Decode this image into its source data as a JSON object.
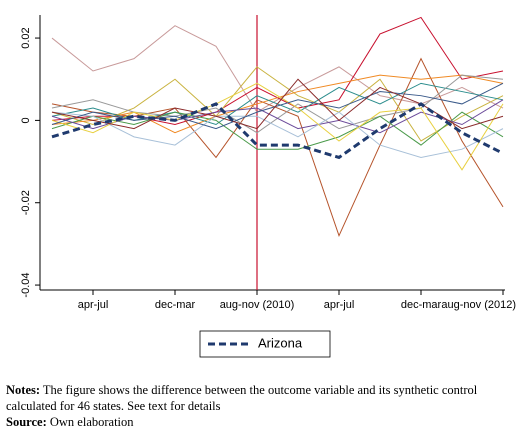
{
  "chart_data": {
    "type": "line",
    "categories": [
      null,
      "apr-jul",
      null,
      "dec-mar",
      null,
      "aug-nov (2010)",
      null,
      "apr-jul",
      null,
      "dec-mar",
      null,
      "aug-nov (2012)"
    ],
    "ylim": [
      -0.0412,
      0.0256
    ],
    "yticks": [
      -0.04,
      -0.02,
      0,
      0.02
    ],
    "vline": 5,
    "vline_color": "#c8102e",
    "series": [
      {
        "color": "#c89a9a",
        "values": [
          0.02,
          0.012,
          0.015,
          0.023,
          0.018,
          0.002,
          0.008,
          0.013,
          0.006,
          0.004,
          0.008,
          0.003
        ]
      },
      {
        "color": "#c8102e",
        "values": [
          0.0,
          0.001,
          0.001,
          -0.001,
          0.002,
          0.008,
          0.003,
          0.005,
          0.021,
          0.025,
          0.01,
          0.012
        ]
      },
      {
        "color": "#b5532a",
        "values": [
          0.004,
          0.002,
          0.001,
          0.003,
          -0.009,
          0.005,
          0.001,
          -0.028,
          -0.006,
          0.015,
          -0.005,
          -0.021
        ]
      },
      {
        "color": "#c9b340",
        "values": [
          0.002,
          -0.001,
          0.003,
          0.01,
          0.001,
          0.013,
          0.006,
          0.002,
          0.01,
          -0.005,
          0.001,
          0.006
        ]
      },
      {
        "color": "#f08a24",
        "values": [
          -0.001,
          0.0,
          0.002,
          -0.003,
          0.001,
          0.004,
          0.007,
          0.009,
          0.011,
          0.01,
          0.011,
          0.009
        ]
      },
      {
        "color": "#2a8c8c",
        "values": [
          0.001,
          0.003,
          0.0,
          0.002,
          -0.001,
          0.006,
          0.002,
          0.008,
          0.004,
          0.009,
          0.007,
          0.005
        ]
      },
      {
        "color": "#999999",
        "values": [
          0.003,
          0.005,
          0.002,
          0.001,
          0.003,
          -0.003,
          0.004,
          -0.002,
          0.001,
          0.003,
          0.011,
          0.01
        ]
      },
      {
        "color": "#4a9a4a",
        "values": [
          -0.002,
          0.001,
          -0.001,
          0.002,
          0.0,
          -0.007,
          -0.007,
          -0.004,
          0.001,
          -0.006,
          0.002,
          -0.004
        ]
      },
      {
        "color": "#6b4a9a",
        "values": [
          0.001,
          -0.002,
          0.001,
          0.0,
          0.002,
          0.003,
          -0.002,
          0.0,
          -0.003,
          0.002,
          -0.001,
          0.005
        ]
      },
      {
        "color": "#a8c0d8",
        "values": [
          0.002,
          0.001,
          -0.004,
          -0.006,
          0.001,
          0.001,
          -0.004,
          0.002,
          -0.006,
          -0.009,
          -0.007,
          -0.002
        ]
      },
      {
        "color": "#e8d040",
        "values": [
          0.0,
          -0.003,
          0.002,
          0.0,
          0.004,
          0.009,
          0.003,
          -0.005,
          0.002,
          0.003,
          -0.012,
          0.004
        ]
      },
      {
        "color": "#3a5a8a",
        "values": [
          -0.001,
          0.002,
          0.0,
          0.001,
          -0.002,
          0.002,
          0.005,
          0.003,
          0.007,
          0.006,
          0.004,
          0.009
        ]
      },
      {
        "color": "#8a2a2a",
        "values": [
          0.002,
          0.0,
          -0.002,
          0.003,
          0.001,
          -0.002,
          0.01,
          0.0,
          0.008,
          0.004,
          -0.002,
          0.001
        ]
      },
      {
        "name": "Arizona",
        "color": "#1f3a6e",
        "dash": true,
        "values": [
          -0.004,
          -0.001,
          0.001,
          0.0,
          0.004,
          -0.006,
          -0.006,
          -0.009,
          -0.002,
          0.004,
          -0.003,
          -0.008
        ]
      }
    ]
  },
  "notes": {
    "label": "Notes:",
    "text": "The figure shows the difference between the outcome variable and its synthetic control calculated for 46 states. See text for details"
  },
  "source": {
    "label": "Source:",
    "text": "Own elaboration"
  }
}
